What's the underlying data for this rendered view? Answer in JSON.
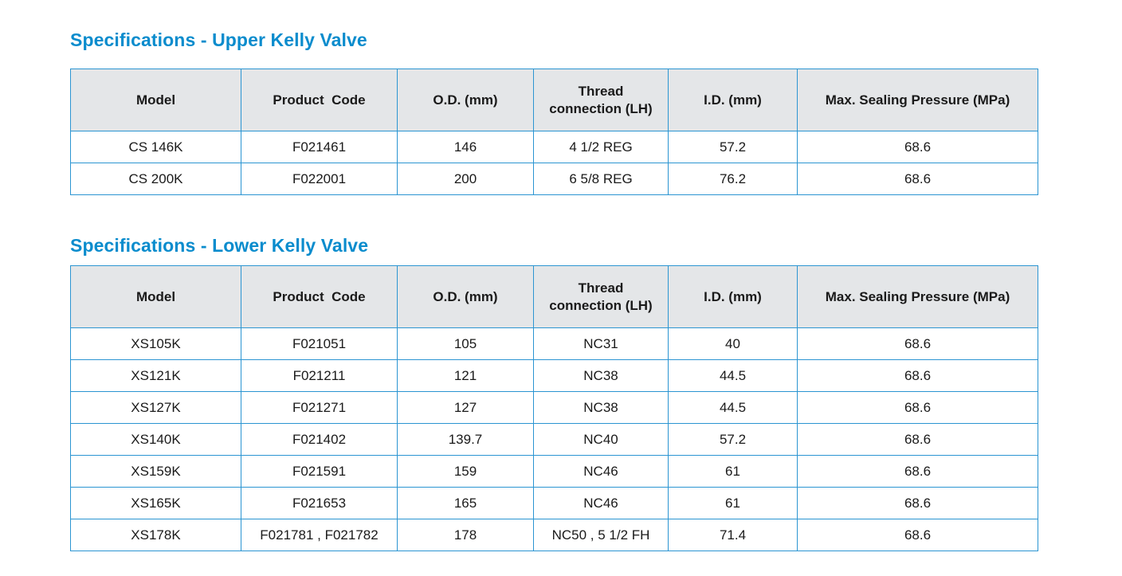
{
  "upper": {
    "title": "Specifications - Upper Kelly Valve",
    "headers": {
      "model": "Model",
      "product_code": "Product  Code",
      "od": "O.D. (mm)",
      "thread_line1": "Thread",
      "thread_line2": "connection (LH)",
      "id": "I.D. (mm)",
      "pressure": "Max. Sealing Pressure (MPa)"
    },
    "rows": [
      [
        "CS 146K",
        "F021461",
        "146",
        "4 1/2 REG",
        "57.2",
        "68.6"
      ],
      [
        "CS 200K",
        "F022001",
        "200",
        "6 5/8 REG",
        "76.2",
        "68.6"
      ]
    ]
  },
  "lower": {
    "title": "Specifications - Lower Kelly Valve",
    "headers": {
      "model": "Model",
      "product_code": "Product  Code",
      "od": "O.D. (mm)",
      "thread_line1": "Thread",
      "thread_line2": "connection (LH)",
      "id": "I.D. (mm)",
      "pressure": "Max. Sealing Pressure (MPa)"
    },
    "rows": [
      [
        "XS105K",
        "F021051",
        "105",
        "NC31",
        "40",
        "68.6"
      ],
      [
        "XS121K",
        "F021211",
        "121",
        "NC38",
        "44.5",
        "68.6"
      ],
      [
        "XS127K",
        "F021271",
        "127",
        "NC38",
        "44.5",
        "68.6"
      ],
      [
        "XS140K",
        "F021402",
        "139.7",
        "NC40",
        "57.2",
        "68.6"
      ],
      [
        "XS159K",
        "F021591",
        "159",
        "NC46",
        "61",
        "68.6"
      ],
      [
        "XS165K",
        "F021653",
        "165",
        "NC46",
        "61",
        "68.6"
      ],
      [
        "XS178K",
        "F021781 , F021782",
        "178",
        "NC50 , 5 1/2 FH",
        "71.4",
        "68.6"
      ]
    ]
  },
  "colors": {
    "title": "#0a8ccd",
    "border": "#2b95d2",
    "header_bg": "#e4e6e8"
  }
}
